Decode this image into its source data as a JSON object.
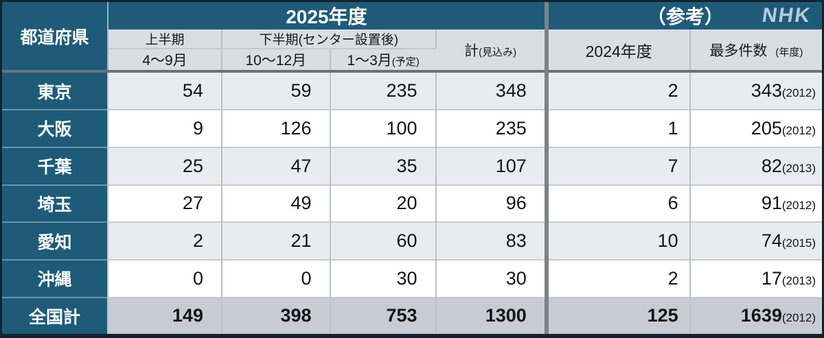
{
  "brand": {
    "logo": "NHK"
  },
  "colors": {
    "teal_header": "#1d5b79",
    "subheader_gray": "#dadde2",
    "row_alt_gray": "#e9ebee",
    "row_white": "#ffffff",
    "total_row_gray": "#c7ccd4",
    "divider_gray": "#7d8287",
    "frame_dark": "#16222c",
    "logo_blue_gray": "#b7cbd8",
    "text_dark": "#141414"
  },
  "header": {
    "prefecture": "都道府県",
    "year2025": "2025年度",
    "reference": "（参考）",
    "first_half": "上半期",
    "second_half": "下半期(センター設置後)",
    "apr_sep": "4〜9月",
    "oct_dec": "10〜12月",
    "jan_mar": "1〜3月",
    "jan_mar_note": "(予定)",
    "total": "計",
    "total_note": "(見込み)",
    "year2024": "2024年度",
    "max_count": "最多件数",
    "max_count_note": "(年度)"
  },
  "rows": [
    {
      "name": "東京",
      "apr_sep": "54",
      "oct_dec": "59",
      "jan_mar": "235",
      "total": "348",
      "y2024": "2",
      "max": "343",
      "max_year": "(2012)"
    },
    {
      "name": "大阪",
      "apr_sep": "9",
      "oct_dec": "126",
      "jan_mar": "100",
      "total": "235",
      "y2024": "1",
      "max": "205",
      "max_year": "(2012)"
    },
    {
      "name": "千葉",
      "apr_sep": "25",
      "oct_dec": "47",
      "jan_mar": "35",
      "total": "107",
      "y2024": "7",
      "max": "82",
      "max_year": "(2013)"
    },
    {
      "name": "埼玉",
      "apr_sep": "27",
      "oct_dec": "49",
      "jan_mar": "20",
      "total": "96",
      "y2024": "6",
      "max": "91",
      "max_year": "(2012)"
    },
    {
      "name": "愛知",
      "apr_sep": "2",
      "oct_dec": "21",
      "jan_mar": "60",
      "total": "83",
      "y2024": "10",
      "max": "74",
      "max_year": "(2015)"
    },
    {
      "name": "沖縄",
      "apr_sep": "0",
      "oct_dec": "0",
      "jan_mar": "30",
      "total": "30",
      "y2024": "2",
      "max": "17",
      "max_year": "(2013)"
    }
  ],
  "footer": {
    "name": "全国計",
    "apr_sep": "149",
    "oct_dec": "398",
    "jan_mar": "753",
    "total": "1300",
    "y2024": "125",
    "max": "1639",
    "max_year": "(2012)"
  },
  "chart_data": {
    "type": "table",
    "title": "",
    "columns": [
      "都道府県",
      "2025年度 上半期 4〜9月",
      "2025年度 下半期(センター設置後) 10〜12月",
      "2025年度 下半期(センター設置後) 1〜3月(予定)",
      "2025年度 計(見込み)",
      "(参考) 2024年度",
      "(参考) 最多件数(年度)"
    ],
    "rows": [
      [
        "東京",
        54,
        59,
        235,
        348,
        2,
        "343(2012)"
      ],
      [
        "大阪",
        9,
        126,
        100,
        235,
        1,
        "205(2012)"
      ],
      [
        "千葉",
        25,
        47,
        35,
        107,
        7,
        "82(2013)"
      ],
      [
        "埼玉",
        27,
        49,
        20,
        96,
        6,
        "91(2012)"
      ],
      [
        "愛知",
        2,
        21,
        60,
        83,
        10,
        "74(2015)"
      ],
      [
        "沖縄",
        0,
        0,
        30,
        30,
        2,
        "17(2013)"
      ],
      [
        "全国計",
        149,
        398,
        753,
        1300,
        125,
        "1639(2012)"
      ]
    ]
  }
}
